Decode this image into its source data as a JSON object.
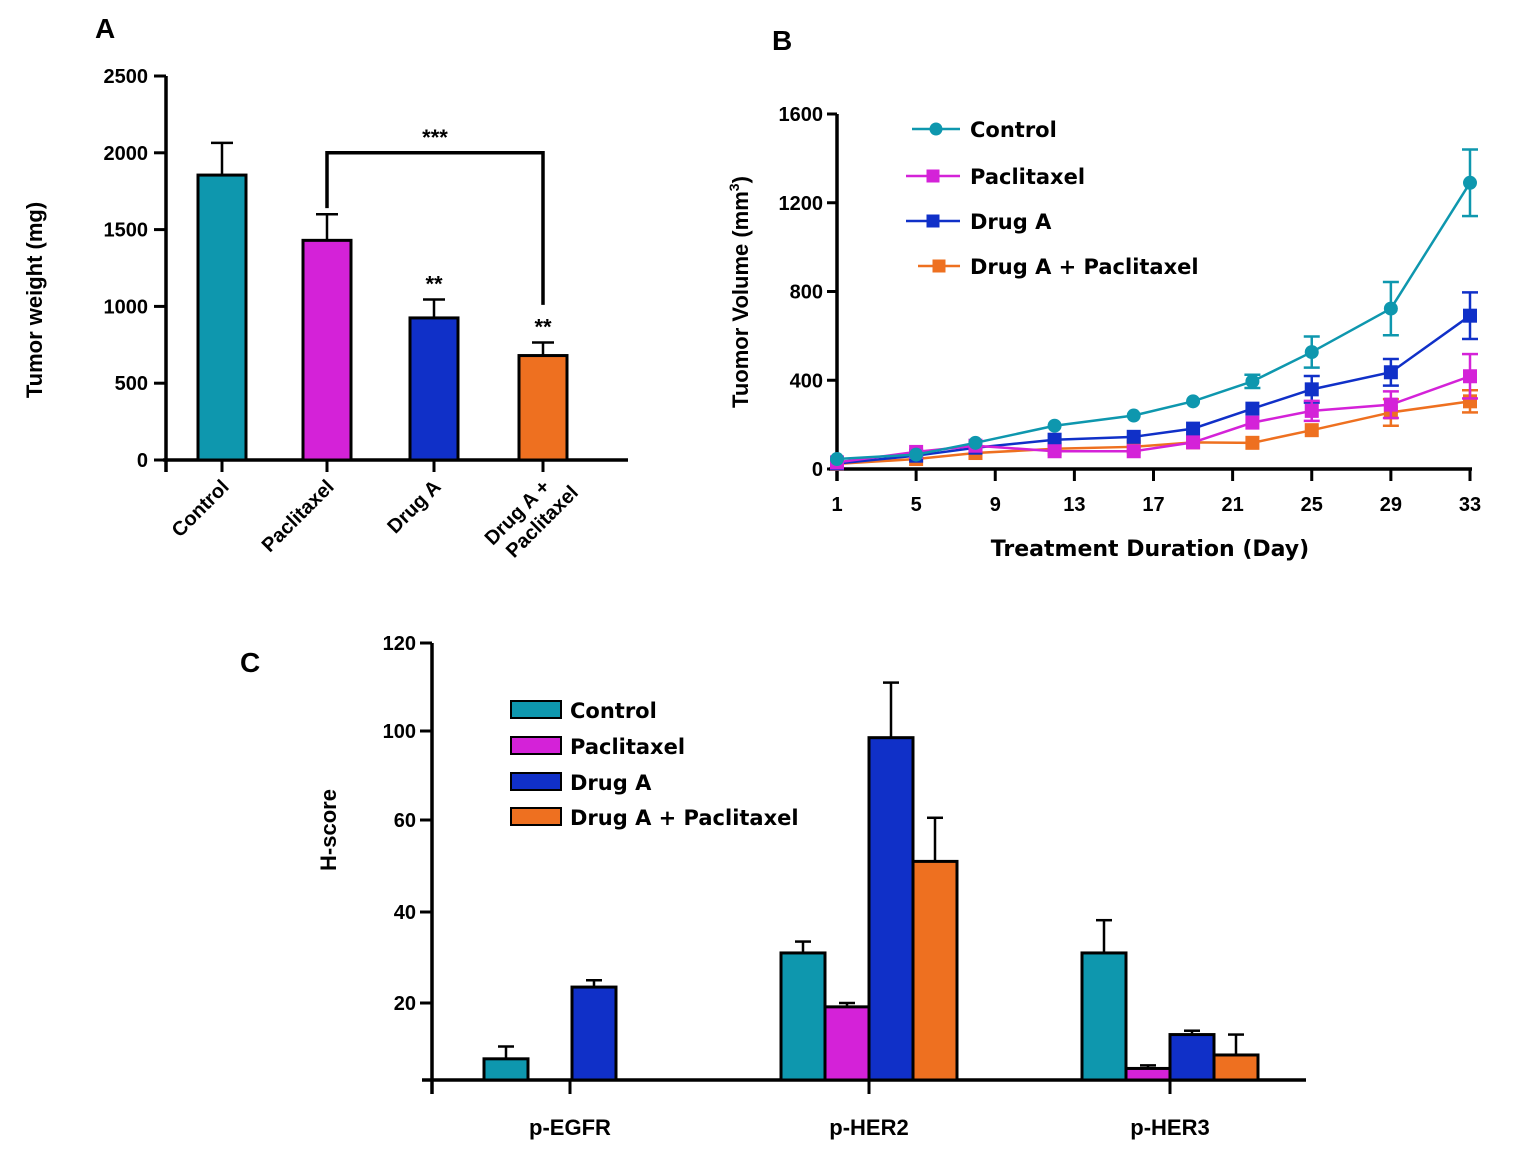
{
  "colors": {
    "control": "#0E97AE",
    "paclitaxel": "#D422D8",
    "drug_a": "#1030C8",
    "combo": "#EE7020"
  },
  "chart_data": [
    {
      "panel": "A",
      "type": "bar",
      "title": "",
      "xlabel": "",
      "ylabel": "Tumor weight (mg)",
      "ylim": [
        0,
        2500
      ],
      "yticks": [
        0,
        500,
        1000,
        1500,
        2000,
        2500
      ],
      "categories": [
        "Control",
        "Paclitaxel",
        "Drug A",
        "Drug A + Paclitaxel"
      ],
      "category_lines": [
        [
          "Control"
        ],
        [
          "Paclitaxel"
        ],
        [
          "Drug A"
        ],
        [
          "Drug A +",
          "Paclitaxel"
        ]
      ],
      "values": [
        1855,
        1430,
        925,
        680
      ],
      "errors": [
        210,
        170,
        120,
        85
      ],
      "color_keys": [
        "control",
        "paclitaxel",
        "drug_a",
        "combo"
      ],
      "annotations": [
        {
          "category": "Drug A",
          "text": "**"
        },
        {
          "category": "Drug A + Paclitaxel",
          "text": "**"
        }
      ],
      "bracket": {
        "from": "Paclitaxel",
        "to": "Drug A + Paclitaxel",
        "level": 2000,
        "text": "***"
      }
    },
    {
      "panel": "B",
      "type": "line",
      "title": "",
      "xlabel": "Treatment Duration (Day)",
      "ylabel": "Tuomor Volume (mm",
      "ylabel_sup": "3",
      "ylabel_end": ")",
      "xlim": [
        1,
        33
      ],
      "xticks": [
        1,
        5,
        9,
        13,
        17,
        21,
        25,
        29,
        33
      ],
      "ylim": [
        0,
        1600
      ],
      "yticks": [
        0,
        400,
        800,
        1200,
        1600
      ],
      "x": [
        1,
        5,
        8,
        12,
        16,
        19,
        22,
        25,
        29,
        33
      ],
      "legend_position": "top-left",
      "series": [
        {
          "name": "Control",
          "color_key": "control",
          "marker": "circle",
          "values": [
            45,
            65,
            118,
            195,
            241,
            305,
            395,
            527,
            723,
            1290
          ],
          "errors": [
            0,
            0,
            0,
            0,
            0,
            0,
            30,
            70,
            120,
            150
          ]
        },
        {
          "name": "Paclitaxel",
          "color_key": "paclitaxel",
          "marker": "square",
          "values": [
            30,
            77,
            105,
            80,
            80,
            120,
            209,
            262,
            290,
            418
          ],
          "errors": [
            0,
            0,
            0,
            0,
            0,
            0,
            0,
            45,
            60,
            100
          ]
        },
        {
          "name": "Drug A",
          "color_key": "drug_a",
          "marker": "square",
          "values": [
            25,
            60,
            96,
            132,
            145,
            182,
            272,
            359,
            436,
            691
          ],
          "errors": [
            0,
            0,
            0,
            0,
            0,
            0,
            0,
            60,
            60,
            105
          ]
        },
        {
          "name": "Drug A + Paclitaxel",
          "color_key": "combo",
          "marker": "square",
          "values": [
            23,
            45,
            72,
            91,
            100,
            120,
            118,
            175,
            255,
            305
          ],
          "errors": [
            0,
            0,
            0,
            0,
            0,
            0,
            0,
            0,
            60,
            50
          ]
        }
      ]
    },
    {
      "panel": "C",
      "type": "bar",
      "title": "",
      "xlabel": "",
      "ylabel": "H-score",
      "yticks": [
        20,
        40,
        60,
        100,
        120
      ],
      "ylim": [
        0,
        120
      ],
      "categories": [
        "p-EGFR",
        "p-HER2",
        "p-HER3"
      ],
      "legend_position": "top-left",
      "series": [
        {
          "name": "Control",
          "color_key": "control",
          "values": [
            5.5,
            31,
            31
          ],
          "errors": [
            3.2,
            2.5,
            7.2
          ]
        },
        {
          "name": "Paclitaxel",
          "color_key": "paclitaxel",
          "values": [
            0,
            19,
            3
          ],
          "errors": [
            0,
            1,
            0.8
          ]
        },
        {
          "name": "Drug A",
          "color_key": "drug_a",
          "values": [
            23.5,
            97,
            11.8
          ],
          "errors": [
            1.5,
            14,
            1
          ]
        },
        {
          "name": "Drug A + Paclitaxel",
          "color_key": "combo",
          "values": [
            0,
            51,
            6.5
          ],
          "errors": [
            0,
            10,
            5.3
          ]
        }
      ]
    }
  ],
  "panel_labels": [
    "A",
    "B",
    "C"
  ]
}
